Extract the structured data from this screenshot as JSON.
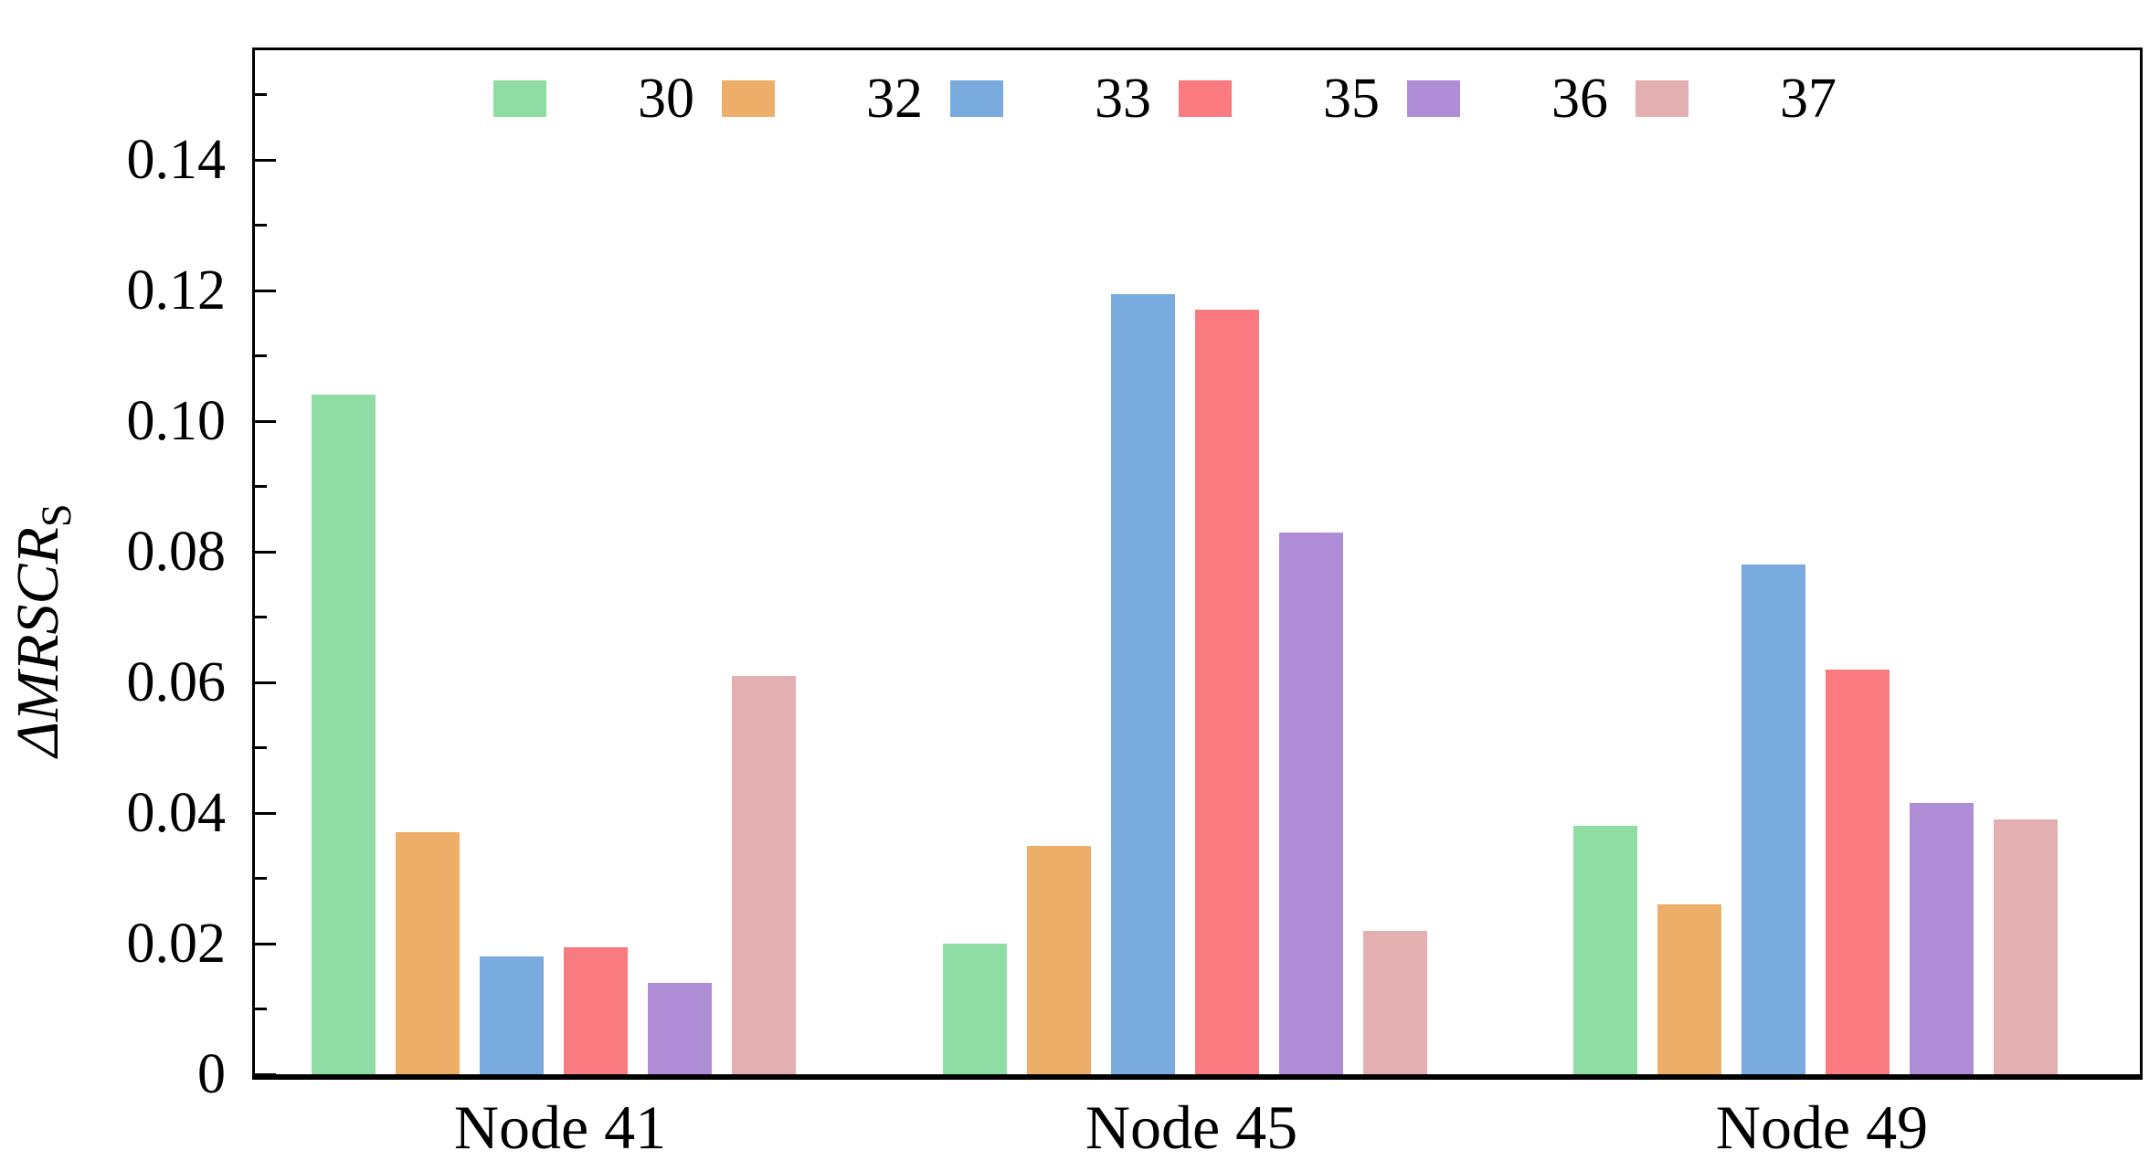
{
  "figure": {
    "background_color": "#ffffff",
    "axis_color": "#000000"
  },
  "axes": {
    "ylabel_delta": "Δ",
    "ylabel_main": "MRSCR",
    "ylabel_sub": "S",
    "ytick_labels": [
      "0",
      "0.02",
      "0.04",
      "0.06",
      "0.08",
      "0.10",
      "0.12",
      "0.14"
    ],
    "ytick_values": [
      0,
      0.02,
      0.04,
      0.06,
      0.08,
      0.1,
      0.12,
      0.14
    ],
    "minor_tick_values": [
      0.01,
      0.03,
      0.05,
      0.07,
      0.09,
      0.11,
      0.13,
      0.15
    ],
    "xcategories": [
      "Node 41",
      "Node 45",
      "Node 49"
    ]
  },
  "legend": {
    "entries": [
      {
        "label": "30",
        "color": "#90dca5"
      },
      {
        "label": "32",
        "color": "#ecae68"
      },
      {
        "label": "33",
        "color": "#7aabdf"
      },
      {
        "label": "35",
        "color": "#f97b80"
      },
      {
        "label": "36",
        "color": "#ae8dd6"
      },
      {
        "label": "37",
        "color": "#e3afb1"
      }
    ]
  },
  "chart_data": {
    "type": "bar",
    "title": "",
    "xlabel": "",
    "ylabel": "ΔMRSCR_S",
    "categories": [
      "Node 41",
      "Node 45",
      "Node 49"
    ],
    "series": [
      {
        "name": "30",
        "color": "#90dca5",
        "values": [
          0.104,
          0.02,
          0.038
        ]
      },
      {
        "name": "32",
        "color": "#ecae68",
        "values": [
          0.037,
          0.035,
          0.026
        ]
      },
      {
        "name": "33",
        "color": "#7aabdf",
        "values": [
          0.018,
          0.1195,
          0.078
        ]
      },
      {
        "name": "35",
        "color": "#f97b80",
        "values": [
          0.0195,
          0.117,
          0.062
        ]
      },
      {
        "name": "36",
        "color": "#ae8dd6",
        "values": [
          0.014,
          0.083,
          0.0415
        ]
      },
      {
        "name": "37",
        "color": "#e3afb1",
        "values": [
          0.061,
          0.022,
          0.039
        ]
      }
    ],
    "ylim": [
      0,
      0.1572
    ],
    "ytick_step": 0.02,
    "minor_tick_step": 0.01,
    "grid": false,
    "legend_position": "upper center inside",
    "tick_direction": "in"
  }
}
